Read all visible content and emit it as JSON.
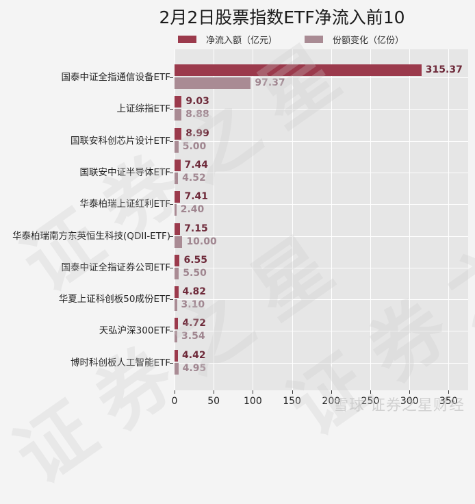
{
  "chart_data": {
    "type": "bar",
    "orientation": "horizontal",
    "title": "2月2日股票指数ETF净流入前10",
    "xlabel": "",
    "ylabel": "",
    "xlim": [
      0,
      375
    ],
    "xticks": [
      0,
      50,
      100,
      150,
      200,
      250,
      300,
      350
    ],
    "grid": true,
    "legend_position": "top",
    "categories": [
      "国泰中证全指通信设备ETF",
      "上证综指ETF",
      "国联安科创芯片设计ETF",
      "国联安中证半导体ETF",
      "华泰柏瑞上证红利ETF",
      "华泰柏瑞南方东英恒生科技(QDII-ETF)",
      "国泰中证全指证券公司ETF",
      "华夏上证科创板50成份ETF",
      "天弘沪深300ETF",
      "博时科创板人工智能ETF"
    ],
    "series": [
      {
        "name": "净流入额（亿元）",
        "color": "#9b3a4c",
        "label_color": "#6e2a3a",
        "values": [
          315.37,
          9.03,
          8.99,
          7.44,
          7.41,
          7.15,
          6.55,
          4.82,
          4.72,
          4.42
        ],
        "labels": [
          "315.37",
          "9.03",
          "8.99",
          "7.44",
          "7.41",
          "7.15",
          "6.55",
          "4.82",
          "4.72",
          "4.42"
        ]
      },
      {
        "name": "份额变化（亿份）",
        "color": "#a98b94",
        "label_color": "#a08690",
        "values": [
          97.37,
          8.88,
          5.0,
          4.52,
          2.4,
          10.0,
          5.5,
          3.1,
          3.54,
          4.95
        ],
        "labels": [
          "97.37",
          "8.88",
          "5.00",
          "4.52",
          "2.40",
          "10.00",
          "5.50",
          "3.10",
          "3.54",
          "4.95"
        ]
      }
    ]
  },
  "watermark": {
    "diagonal_text": "证券之星",
    "footer_text": "雪球 证券之星财经"
  },
  "colors": {
    "background": "#f4f4f4",
    "plot_background": "#e6e6e6",
    "gridline": "#ffffff"
  }
}
